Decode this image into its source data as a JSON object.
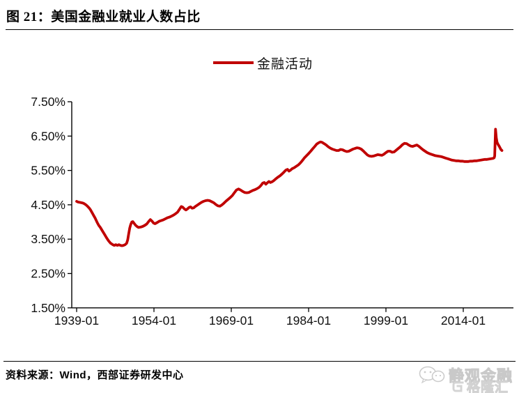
{
  "title": "图 21：美国金融业就业人数占比",
  "legend": {
    "label": "金融活动",
    "line_color": "#c00000"
  },
  "source_note": {
    "label": "资料来源：",
    "vendor": "Wind",
    "rest": "，西部证券研发中心"
  },
  "watermark": {
    "name": "静观金融",
    "logo_text": "格隆汇"
  },
  "chart_data": {
    "type": "line",
    "title": "美国金融业就业人数占比",
    "xlabel": "",
    "ylabel": "",
    "ylim": [
      1.5,
      7.5
    ],
    "xlim": [
      1938,
      2023.7
    ],
    "grid": false,
    "legend_position": "top-center",
    "y_ticks": [
      {
        "label": "7.50%",
        "value": 7.5
      },
      {
        "label": "6.50%",
        "value": 6.5
      },
      {
        "label": "5.50%",
        "value": 5.5
      },
      {
        "label": "4.50%",
        "value": 4.5
      },
      {
        "label": "3.50%",
        "value": 3.5
      },
      {
        "label": "2.50%",
        "value": 2.5
      },
      {
        "label": "1.50%",
        "value": 1.5
      }
    ],
    "x_ticks": [
      {
        "label": "1939-01",
        "year": 1939
      },
      {
        "label": "1954-01",
        "year": 1954
      },
      {
        "label": "1969-01",
        "year": 1969
      },
      {
        "label": "1984-01",
        "year": 1984
      },
      {
        "label": "1999-01",
        "year": 1999
      },
      {
        "label": "2014-01",
        "year": 2014
      }
    ],
    "series": [
      {
        "name": "金融活动",
        "color": "#c00000",
        "points": [
          [
            1939.0,
            4.6
          ],
          [
            1939.3,
            4.58
          ],
          [
            1939.6,
            4.57
          ],
          [
            1939.9,
            4.56
          ],
          [
            1940.2,
            4.55
          ],
          [
            1940.5,
            4.53
          ],
          [
            1940.8,
            4.5
          ],
          [
            1941.1,
            4.46
          ],
          [
            1941.4,
            4.41
          ],
          [
            1941.7,
            4.35
          ],
          [
            1942.0,
            4.27
          ],
          [
            1942.3,
            4.19
          ],
          [
            1942.6,
            4.11
          ],
          [
            1943.0,
            3.98
          ],
          [
            1943.3,
            3.9
          ],
          [
            1943.6,
            3.84
          ],
          [
            1944.0,
            3.74
          ],
          [
            1944.4,
            3.64
          ],
          [
            1944.8,
            3.54
          ],
          [
            1945.2,
            3.45
          ],
          [
            1945.6,
            3.38
          ],
          [
            1946.0,
            3.34
          ],
          [
            1946.3,
            3.32
          ],
          [
            1946.6,
            3.34
          ],
          [
            1946.9,
            3.32
          ],
          [
            1947.2,
            3.34
          ],
          [
            1947.5,
            3.32
          ],
          [
            1947.8,
            3.31
          ],
          [
            1948.1,
            3.32
          ],
          [
            1948.4,
            3.34
          ],
          [
            1948.7,
            3.38
          ],
          [
            1948.9,
            3.48
          ],
          [
            1949.1,
            3.65
          ],
          [
            1949.3,
            3.82
          ],
          [
            1949.5,
            3.93
          ],
          [
            1949.7,
            4.0
          ],
          [
            1949.9,
            4.01
          ],
          [
            1950.1,
            3.97
          ],
          [
            1950.4,
            3.91
          ],
          [
            1950.7,
            3.87
          ],
          [
            1951.0,
            3.84
          ],
          [
            1951.4,
            3.85
          ],
          [
            1951.8,
            3.87
          ],
          [
            1952.2,
            3.9
          ],
          [
            1952.6,
            3.94
          ],
          [
            1953.0,
            4.02
          ],
          [
            1953.3,
            4.07
          ],
          [
            1953.6,
            4.03
          ],
          [
            1953.9,
            3.97
          ],
          [
            1954.2,
            3.95
          ],
          [
            1954.6,
            3.98
          ],
          [
            1955.0,
            4.02
          ],
          [
            1955.4,
            4.04
          ],
          [
            1955.8,
            4.06
          ],
          [
            1956.2,
            4.09
          ],
          [
            1956.6,
            4.12
          ],
          [
            1957.0,
            4.14
          ],
          [
            1957.4,
            4.17
          ],
          [
            1957.8,
            4.2
          ],
          [
            1958.2,
            4.24
          ],
          [
            1958.6,
            4.29
          ],
          [
            1959.0,
            4.38
          ],
          [
            1959.3,
            4.45
          ],
          [
            1959.6,
            4.43
          ],
          [
            1959.9,
            4.38
          ],
          [
            1960.2,
            4.35
          ],
          [
            1960.5,
            4.38
          ],
          [
            1960.8,
            4.42
          ],
          [
            1961.1,
            4.44
          ],
          [
            1961.4,
            4.4
          ],
          [
            1961.7,
            4.41
          ],
          [
            1962.0,
            4.45
          ],
          [
            1962.4,
            4.49
          ],
          [
            1962.8,
            4.53
          ],
          [
            1963.2,
            4.57
          ],
          [
            1963.6,
            4.6
          ],
          [
            1964.0,
            4.62
          ],
          [
            1964.4,
            4.63
          ],
          [
            1964.8,
            4.62
          ],
          [
            1965.2,
            4.59
          ],
          [
            1965.6,
            4.56
          ],
          [
            1966.0,
            4.51
          ],
          [
            1966.4,
            4.47
          ],
          [
            1966.8,
            4.46
          ],
          [
            1967.2,
            4.5
          ],
          [
            1967.6,
            4.55
          ],
          [
            1968.0,
            4.61
          ],
          [
            1968.4,
            4.66
          ],
          [
            1968.8,
            4.71
          ],
          [
            1969.2,
            4.77
          ],
          [
            1969.6,
            4.85
          ],
          [
            1970.0,
            4.93
          ],
          [
            1970.4,
            4.96
          ],
          [
            1970.8,
            4.93
          ],
          [
            1971.2,
            4.89
          ],
          [
            1971.6,
            4.86
          ],
          [
            1972.0,
            4.85
          ],
          [
            1972.4,
            4.86
          ],
          [
            1972.8,
            4.89
          ],
          [
            1973.2,
            4.92
          ],
          [
            1973.6,
            4.94
          ],
          [
            1974.0,
            4.97
          ],
          [
            1974.4,
            5.01
          ],
          [
            1974.8,
            5.07
          ],
          [
            1975.1,
            5.13
          ],
          [
            1975.4,
            5.15
          ],
          [
            1975.7,
            5.1
          ],
          [
            1976.0,
            5.14
          ],
          [
            1976.3,
            5.18
          ],
          [
            1976.6,
            5.15
          ],
          [
            1976.9,
            5.17
          ],
          [
            1977.2,
            5.2
          ],
          [
            1977.6,
            5.25
          ],
          [
            1978.0,
            5.3
          ],
          [
            1978.4,
            5.34
          ],
          [
            1978.8,
            5.39
          ],
          [
            1979.2,
            5.45
          ],
          [
            1979.6,
            5.51
          ],
          [
            1979.9,
            5.53
          ],
          [
            1980.2,
            5.48
          ],
          [
            1980.5,
            5.51
          ],
          [
            1980.8,
            5.55
          ],
          [
            1981.2,
            5.58
          ],
          [
            1981.6,
            5.62
          ],
          [
            1982.0,
            5.66
          ],
          [
            1982.4,
            5.72
          ],
          [
            1982.8,
            5.79
          ],
          [
            1983.2,
            5.87
          ],
          [
            1983.6,
            5.93
          ],
          [
            1984.0,
            5.99
          ],
          [
            1984.4,
            6.06
          ],
          [
            1984.8,
            6.13
          ],
          [
            1985.2,
            6.2
          ],
          [
            1985.6,
            6.27
          ],
          [
            1986.0,
            6.31
          ],
          [
            1986.3,
            6.33
          ],
          [
            1986.6,
            6.32
          ],
          [
            1987.0,
            6.28
          ],
          [
            1987.4,
            6.24
          ],
          [
            1987.8,
            6.19
          ],
          [
            1988.2,
            6.15
          ],
          [
            1988.6,
            6.12
          ],
          [
            1989.0,
            6.1
          ],
          [
            1989.4,
            6.08
          ],
          [
            1989.8,
            6.08
          ],
          [
            1990.2,
            6.11
          ],
          [
            1990.6,
            6.1
          ],
          [
            1991.0,
            6.07
          ],
          [
            1991.4,
            6.05
          ],
          [
            1991.8,
            6.06
          ],
          [
            1992.2,
            6.09
          ],
          [
            1992.6,
            6.12
          ],
          [
            1993.0,
            6.14
          ],
          [
            1993.4,
            6.16
          ],
          [
            1993.8,
            6.15
          ],
          [
            1994.2,
            6.12
          ],
          [
            1994.6,
            6.07
          ],
          [
            1995.0,
            6.01
          ],
          [
            1995.4,
            5.95
          ],
          [
            1995.8,
            5.92
          ],
          [
            1996.2,
            5.91
          ],
          [
            1996.6,
            5.92
          ],
          [
            1997.0,
            5.94
          ],
          [
            1997.4,
            5.96
          ],
          [
            1997.8,
            5.95
          ],
          [
            1998.2,
            5.94
          ],
          [
            1998.6,
            5.97
          ],
          [
            1999.0,
            6.02
          ],
          [
            1999.4,
            6.06
          ],
          [
            1999.8,
            6.06
          ],
          [
            2000.2,
            6.03
          ],
          [
            2000.6,
            6.04
          ],
          [
            2001.0,
            6.09
          ],
          [
            2001.4,
            6.14
          ],
          [
            2001.8,
            6.19
          ],
          [
            2002.2,
            6.25
          ],
          [
            2002.6,
            6.29
          ],
          [
            2003.0,
            6.28
          ],
          [
            2003.4,
            6.24
          ],
          [
            2003.8,
            6.21
          ],
          [
            2004.2,
            6.2
          ],
          [
            2004.6,
            6.22
          ],
          [
            2005.0,
            6.24
          ],
          [
            2005.4,
            6.2
          ],
          [
            2005.8,
            6.15
          ],
          [
            2006.2,
            6.1
          ],
          [
            2006.6,
            6.06
          ],
          [
            2007.0,
            6.02
          ],
          [
            2007.4,
            5.99
          ],
          [
            2007.8,
            5.97
          ],
          [
            2008.2,
            5.95
          ],
          [
            2008.6,
            5.93
          ],
          [
            2009.0,
            5.92
          ],
          [
            2009.4,
            5.91
          ],
          [
            2009.8,
            5.9
          ],
          [
            2010.2,
            5.88
          ],
          [
            2010.6,
            5.86
          ],
          [
            2011.0,
            5.84
          ],
          [
            2011.4,
            5.82
          ],
          [
            2011.8,
            5.8
          ],
          [
            2012.2,
            5.79
          ],
          [
            2012.6,
            5.78
          ],
          [
            2013.0,
            5.78
          ],
          [
            2013.4,
            5.77
          ],
          [
            2013.8,
            5.77
          ],
          [
            2014.2,
            5.76
          ],
          [
            2014.6,
            5.76
          ],
          [
            2015.0,
            5.76
          ],
          [
            2015.4,
            5.77
          ],
          [
            2015.8,
            5.77
          ],
          [
            2016.2,
            5.78
          ],
          [
            2016.6,
            5.78
          ],
          [
            2017.0,
            5.79
          ],
          [
            2017.4,
            5.8
          ],
          [
            2017.8,
            5.81
          ],
          [
            2018.2,
            5.82
          ],
          [
            2018.6,
            5.82
          ],
          [
            2019.0,
            5.83
          ],
          [
            2019.4,
            5.84
          ],
          [
            2019.8,
            5.85
          ],
          [
            2020.0,
            5.87
          ],
          [
            2020.1,
            5.92
          ],
          [
            2020.25,
            6.7
          ],
          [
            2020.4,
            6.45
          ],
          [
            2020.55,
            6.32
          ],
          [
            2020.7,
            6.27
          ],
          [
            2020.9,
            6.22
          ],
          [
            2021.1,
            6.17
          ],
          [
            2021.3,
            6.11
          ],
          [
            2021.5,
            6.08
          ]
        ]
      }
    ]
  }
}
